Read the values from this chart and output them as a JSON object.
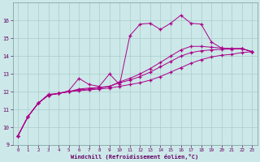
{
  "x": [
    0,
    1,
    2,
    3,
    4,
    5,
    6,
    7,
    8,
    9,
    10,
    11,
    12,
    13,
    14,
    15,
    16,
    17,
    18,
    19,
    20,
    21,
    22,
    23
  ],
  "line_smooth1": [
    9.5,
    10.6,
    11.35,
    11.8,
    11.9,
    12.0,
    12.05,
    12.1,
    12.15,
    12.2,
    12.3,
    12.4,
    12.5,
    12.65,
    12.85,
    13.1,
    13.35,
    13.6,
    13.8,
    13.95,
    14.05,
    14.1,
    14.2,
    14.25
  ],
  "line_smooth2": [
    9.5,
    10.6,
    11.35,
    11.8,
    11.9,
    12.0,
    12.1,
    12.15,
    12.2,
    12.3,
    12.5,
    12.65,
    12.85,
    13.1,
    13.4,
    13.7,
    14.0,
    14.2,
    14.3,
    14.35,
    14.38,
    14.4,
    14.42,
    14.25
  ],
  "line_smooth3": [
    9.5,
    10.6,
    11.35,
    11.8,
    11.9,
    12.0,
    12.15,
    12.2,
    12.25,
    12.3,
    12.55,
    12.75,
    13.0,
    13.3,
    13.65,
    14.0,
    14.35,
    14.55,
    14.55,
    14.5,
    14.45,
    14.42,
    14.42,
    14.25
  ],
  "line_spiky": [
    9.5,
    10.6,
    11.35,
    11.85,
    11.9,
    12.05,
    12.75,
    12.4,
    12.3,
    13.0,
    12.4,
    15.15,
    15.8,
    15.85,
    15.5,
    15.85,
    16.3,
    15.85,
    15.8,
    14.8,
    14.45,
    14.42,
    14.42,
    14.25
  ],
  "bg_color": "#cce8e8",
  "grid_color": "#aacccc",
  "line_color": "#aa0088",
  "xlabel": "Windchill (Refroidissement éolien,°C)",
  "ylim": [
    9,
    17
  ],
  "xlim": [
    -0.5,
    23.5
  ],
  "yticks": [
    9,
    10,
    11,
    12,
    13,
    14,
    15,
    16
  ],
  "xticks": [
    0,
    1,
    2,
    3,
    4,
    5,
    6,
    7,
    8,
    9,
    10,
    11,
    12,
    13,
    14,
    15,
    16,
    17,
    18,
    19,
    20,
    21,
    22,
    23
  ]
}
